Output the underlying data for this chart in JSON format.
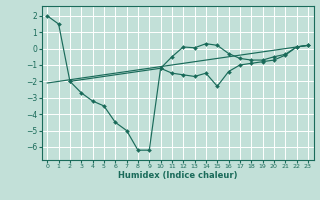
{
  "xlabel": "Humidex (Indice chaleur)",
  "bg_color": "#c2e0d8",
  "grid_color": "#ffffff",
  "line_color": "#1a6b5a",
  "xlim": [
    -0.5,
    23.5
  ],
  "ylim": [
    -6.8,
    2.6
  ],
  "yticks": [
    2,
    1,
    0,
    -1,
    -2,
    -3,
    -4,
    -5,
    -6
  ],
  "xticks": [
    0,
    1,
    2,
    3,
    4,
    5,
    6,
    7,
    8,
    9,
    10,
    11,
    12,
    13,
    14,
    15,
    16,
    17,
    18,
    19,
    20,
    21,
    22,
    23
  ],
  "line1_x": [
    0,
    1,
    2,
    3,
    4,
    5,
    6,
    7,
    8,
    9,
    10,
    11,
    12,
    13,
    14,
    15,
    16,
    17,
    18,
    19,
    20,
    21,
    22,
    23
  ],
  "line1_y": [
    2.0,
    1.5,
    -2.0,
    -2.7,
    -3.2,
    -3.5,
    -4.5,
    -5.0,
    -6.2,
    -6.2,
    -1.2,
    -0.5,
    0.1,
    0.05,
    0.3,
    0.2,
    -0.3,
    -0.6,
    -0.7,
    -0.7,
    -0.5,
    -0.35,
    0.1,
    0.2
  ],
  "line2_x": [
    2,
    10,
    11,
    12,
    13,
    14,
    15,
    16,
    17,
    18,
    19,
    20,
    21,
    22,
    23
  ],
  "line2_y": [
    -2.0,
    -1.2,
    -1.5,
    -1.6,
    -1.7,
    -1.5,
    -2.3,
    -1.4,
    -1.0,
    -0.9,
    -0.8,
    -0.7,
    -0.4,
    0.1,
    0.2
  ],
  "line3_x": [
    0,
    23
  ],
  "line3_y": [
    -2.1,
    0.2
  ]
}
